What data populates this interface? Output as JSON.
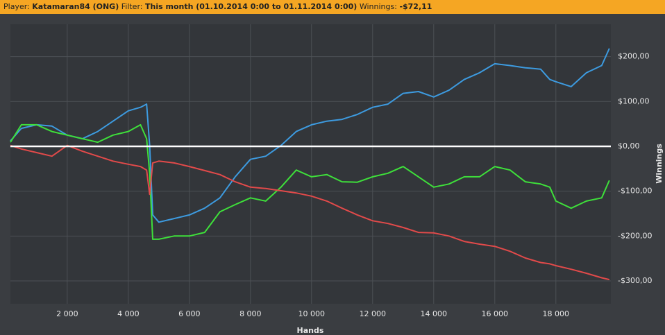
{
  "header": {
    "player_label": "Player:",
    "player": "Katamaran84 (ONG)",
    "filter_label": "Filter:",
    "filter": "This month (01.10.2014 0:00 to 01.11.2014 0:00)",
    "winnings_label": "Winnings:",
    "winnings": "-$72,11"
  },
  "chart_data": {
    "type": "line",
    "x_label": "Hands",
    "y_label": "Winnings",
    "x": [
      140,
      500,
      1000,
      1500,
      2000,
      2500,
      3000,
      3500,
      4000,
      4400,
      4600,
      4700,
      4800,
      5000,
      5500,
      6000,
      6500,
      7000,
      7500,
      8000,
      8500,
      9000,
      9500,
      10000,
      10500,
      11000,
      11500,
      12000,
      12500,
      13000,
      13500,
      14000,
      14500,
      15000,
      15500,
      16000,
      16500,
      17000,
      17500,
      17800,
      18000,
      18500,
      19000,
      19500,
      19750
    ],
    "series": [
      {
        "color": "#3d9be0",
        "values": [
          12,
          40,
          48,
          45,
          25,
          17,
          33,
          56,
          79,
          87,
          94,
          2,
          -153,
          -169,
          -161,
          -153,
          -138,
          -115,
          -68,
          -29,
          -22,
          2,
          33,
          48,
          56,
          60,
          71,
          87,
          94,
          118,
          122,
          110,
          125,
          149,
          164,
          184,
          180,
          175,
          172,
          149,
          144,
          133,
          164,
          180,
          218
        ]
      },
      {
        "color": "#3ee03a",
        "values": [
          9,
          48,
          48,
          33,
          25,
          17,
          9,
          25,
          33,
          48,
          17,
          -60,
          -207,
          -207,
          -200,
          -200,
          -192,
          -146,
          -130,
          -115,
          -122,
          -91,
          -53,
          -68,
          -63,
          -79,
          -80,
          -68,
          -60,
          -45,
          -68,
          -91,
          -84,
          -68,
          -68,
          -45,
          -53,
          -79,
          -84,
          -91,
          -122,
          -138,
          -122,
          -115,
          -76
        ]
      },
      {
        "color": "#e24a4a",
        "values": [
          2,
          -6,
          -14,
          -22,
          2,
          -11,
          -22,
          -33,
          -40,
          -45,
          -53,
          -107,
          -37,
          -33,
          -37,
          -45,
          -54,
          -63,
          -79,
          -91,
          -94,
          -99,
          -104,
          -111,
          -122,
          -138,
          -153,
          -166,
          -172,
          -181,
          -192,
          -193,
          -200,
          -212,
          -218,
          -223,
          -234,
          -249,
          -259,
          -262,
          -266,
          -274,
          -283,
          -293,
          -297
        ]
      }
    ],
    "xlim": [
      140,
      19800
    ],
    "xticks": [
      {
        "value": 2000,
        "label": "2 000"
      },
      {
        "value": 4000,
        "label": "4 000"
      },
      {
        "value": 6000,
        "label": "6 000"
      },
      {
        "value": 8000,
        "label": "8 000"
      },
      {
        "value": 10000,
        "label": "10 000"
      },
      {
        "value": 12000,
        "label": "12 000"
      },
      {
        "value": 14000,
        "label": "14 000"
      },
      {
        "value": 16000,
        "label": "16 000"
      },
      {
        "value": 18000,
        "label": "18 000"
      }
    ],
    "ylim": [
      -351,
      272
    ],
    "yticks": [
      {
        "value": -300,
        "label": "-$300,00"
      },
      {
        "value": -200,
        "label": "-$200,00"
      },
      {
        "value": -100,
        "label": "-$100,00"
      },
      {
        "value": 0,
        "label": "$0,00"
      },
      {
        "value": 100,
        "label": "$100,00"
      },
      {
        "value": 200,
        "label": "$200,00"
      }
    ],
    "grid": true
  }
}
